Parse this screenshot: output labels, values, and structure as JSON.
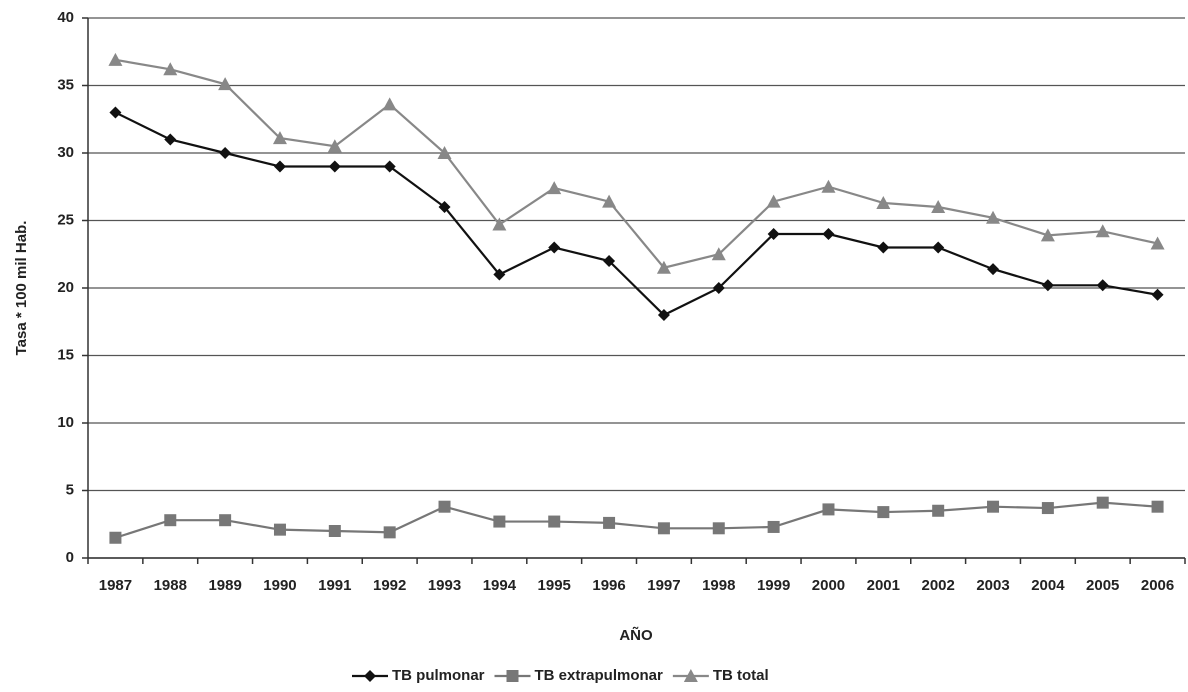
{
  "chart_data": {
    "type": "line",
    "x_label": "AÑO",
    "y_label": "Tasa * 100 mil Hab.",
    "categories": [
      "1987",
      "1988",
      "1989",
      "1990",
      "1991",
      "1992",
      "1993",
      "1994",
      "1995",
      "1996",
      "1997",
      "1998",
      "1999",
      "2000",
      "2001",
      "2002",
      "2003",
      "2004",
      "2005",
      "2006"
    ],
    "series": [
      {
        "name": "TB pulmonar",
        "color": "#111111",
        "marker": "diamond",
        "values": [
          33,
          31,
          30,
          29,
          29,
          29,
          26,
          21,
          23,
          22,
          18,
          20,
          24,
          24,
          23,
          23,
          21.4,
          20.2,
          20.2,
          19.5
        ]
      },
      {
        "name": "TB extrapulmonar",
        "color": "#777777",
        "marker": "square",
        "values": [
          1.5,
          2.8,
          2.8,
          2.1,
          2.0,
          1.9,
          3.8,
          2.7,
          2.7,
          2.6,
          2.2,
          2.2,
          2.3,
          3.6,
          3.4,
          3.5,
          3.8,
          3.7,
          4.1,
          3.8
        ]
      },
      {
        "name": "TB total",
        "color": "#888888",
        "marker": "triangle",
        "values": [
          36.9,
          36.2,
          35.1,
          31.1,
          30.5,
          33.6,
          30.0,
          24.7,
          27.4,
          26.4,
          21.5,
          22.5,
          26.4,
          27.5,
          26.3,
          26.0,
          25.2,
          23.9,
          24.2,
          23.3
        ]
      }
    ],
    "ylim": [
      0,
      40
    ],
    "yticks": [
      0,
      5,
      10,
      15,
      20,
      25,
      30,
      35,
      40
    ],
    "grid": true,
    "legend": "bottom"
  }
}
